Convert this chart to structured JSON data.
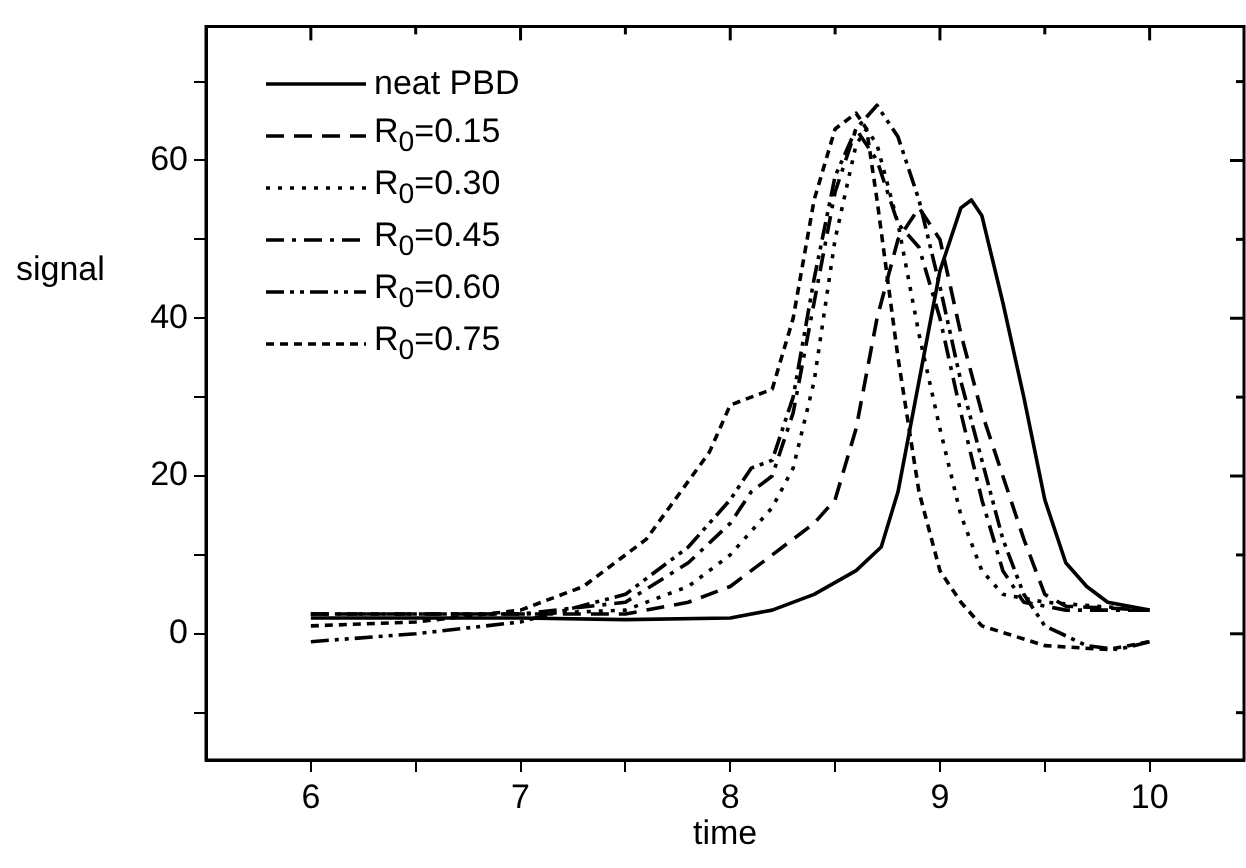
{
  "chart_data": {
    "type": "line",
    "xlabel": "time",
    "ylabel": "signal",
    "xlim": [
      5.5,
      10.45
    ],
    "ylim": [
      -16,
      77
    ],
    "xticks": [
      6,
      {
        "value": 6.5,
        "label": null
      },
      7,
      {
        "value": 7.5,
        "label": null
      },
      8,
      {
        "value": 8.5,
        "label": null
      },
      9,
      {
        "value": 9.5,
        "label": null
      },
      10
    ],
    "yticks": [
      {
        "value": -10,
        "label": null
      },
      0,
      {
        "value": 10,
        "label": null
      },
      20,
      {
        "value": 30,
        "label": null
      },
      40,
      {
        "value": 50,
        "label": null
      },
      60,
      {
        "value": 70,
        "label": null
      }
    ],
    "grid": false,
    "legend": "top left",
    "marker": "none",
    "series": [
      {
        "name": "neat PBD",
        "color": "#000000",
        "line_style": "solid",
        "x": [
          6,
          7,
          7.5,
          8,
          8.2,
          8.4,
          8.6,
          8.72,
          8.8,
          8.9,
          9.0,
          9.1,
          9.15,
          9.2,
          9.3,
          9.4,
          9.5,
          9.6,
          9.7,
          9.8,
          10
        ],
        "values": [
          2,
          2,
          1.8,
          2,
          3,
          5,
          8,
          11,
          18,
          32,
          46,
          54,
          55,
          53,
          42,
          30,
          17,
          9,
          6,
          4,
          3
        ]
      },
      {
        "name": "R$_{0}$=0.15",
        "color": "#000000",
        "line_style": "dashed",
        "x": [
          6,
          7,
          7.5,
          7.8,
          8,
          8.2,
          8.4,
          8.5,
          8.6,
          8.7,
          8.8,
          8.9,
          9.0,
          9.1,
          9.2,
          9.3,
          9.4,
          9.5,
          9.6,
          10
        ],
        "values": [
          2.5,
          2.5,
          2.5,
          4,
          6,
          10,
          14,
          17,
          26,
          40,
          50,
          54,
          50,
          38,
          28,
          20,
          12,
          5,
          3.5,
          3
        ]
      },
      {
        "name": "R$_{0}$=0.30",
        "color": "#000000",
        "line_style": "dotted",
        "x": [
          6,
          7,
          7.5,
          7.8,
          8,
          8.1,
          8.2,
          8.3,
          8.4,
          8.5,
          8.6,
          8.65,
          8.7,
          8.8,
          8.9,
          9.0,
          9.1,
          9.2,
          9.3,
          9.5,
          10
        ],
        "values": [
          2.5,
          2.5,
          3,
          6,
          10,
          13,
          16,
          21,
          32,
          50,
          62,
          64,
          62,
          52,
          38,
          26,
          15,
          8,
          5,
          4,
          3
        ]
      },
      {
        "name": "R$_{0}$=0.45",
        "color": "#000000",
        "line_style": "dashdot",
        "x": [
          6,
          7,
          7.5,
          7.8,
          8,
          8.1,
          8.2,
          8.3,
          8.4,
          8.5,
          8.6,
          8.7,
          8.8,
          8.9,
          9.0,
          9.1,
          9.2,
          9.3,
          9.4,
          9.6,
          10
        ],
        "values": [
          2.5,
          2.5,
          4,
          9,
          14,
          18,
          20,
          28,
          42,
          56,
          64,
          60,
          52,
          49,
          40,
          28,
          17,
          8,
          4,
          3,
          3
        ]
      },
      {
        "name": "R$_{0}$=0.60",
        "color": "#000000",
        "line_style": "dashdotdot",
        "x": [
          6,
          6.5,
          7,
          7.5,
          7.8,
          8,
          8.1,
          8.2,
          8.3,
          8.4,
          8.5,
          8.6,
          8.7,
          8.8,
          8.9,
          9.0,
          9.1,
          9.2,
          9.3,
          9.4,
          9.5,
          9.7,
          9.85,
          10
        ],
        "values": [
          -1,
          0,
          1.5,
          5,
          11,
          17,
          21,
          22,
          30,
          45,
          58,
          64,
          67,
          63,
          55,
          44,
          32,
          22,
          12,
          5,
          1,
          -1.5,
          -2,
          -1
        ]
      },
      {
        "name": "R$_{0}$=0.75",
        "color": "#000000",
        "line_style": "shortdash",
        "x": [
          6,
          6.5,
          7,
          7.3,
          7.6,
          7.9,
          8,
          8.1,
          8.2,
          8.3,
          8.4,
          8.5,
          8.6,
          8.65,
          8.7,
          8.8,
          8.9,
          9.0,
          9.1,
          9.2,
          9.5,
          9.8,
          10
        ],
        "values": [
          1,
          1.5,
          3,
          6,
          12,
          23,
          29,
          30,
          31,
          40,
          55,
          64,
          66,
          64,
          55,
          35,
          18,
          8,
          4,
          1,
          -1.5,
          -2,
          -1
        ]
      }
    ]
  }
}
